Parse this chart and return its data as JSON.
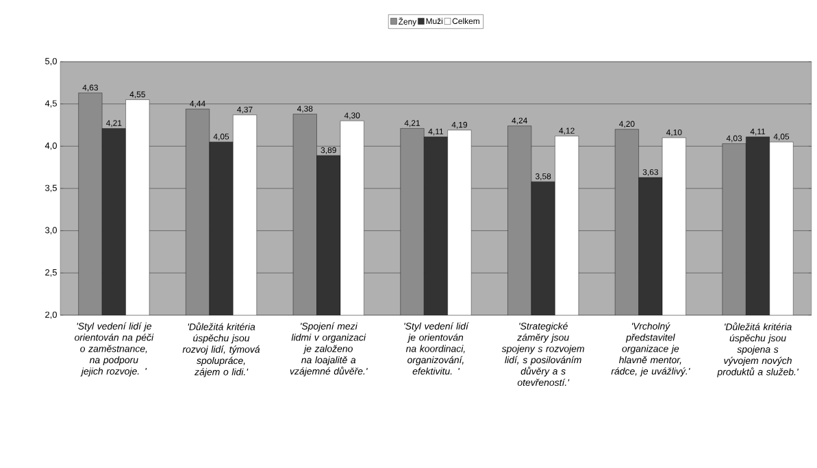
{
  "chart_data": {
    "type": "bar",
    "categories": [
      "'Styl vedení lidí je orientován na péči o zaměstnance, na podporu jejich rozvoje. '",
      "'Důležitá kritéria úspěchu jsou rozvoj lidí, týmová spolupráce, zájem o lidi.'",
      "'Spojení mezi lidmi v organizaci je založeno na loajalitě a vzájemné důvěře.'",
      "'Styl vedení lidí je orientován na koordinaci, organizování, efektivitu. '",
      "'Strategické záměry jsou spojeny s rozvojem lidí, s posilováním důvěry a s otevřeností.'",
      "'Vrcholný představitel organizace je hlavně mentor, rádce, je uvážlivý.'",
      "'Důležitá kritéria úspěchu jsou spojena s vývojem nových produktů a služeb.'"
    ],
    "series": [
      {
        "name": "Ženy",
        "color": "#8c8c8c",
        "values": [
          4.63,
          4.44,
          4.38,
          4.21,
          4.24,
          4.2,
          4.03
        ],
        "value_labels": [
          "4,63",
          "4,44",
          "4,38",
          "4,21",
          "4,24",
          "4,20",
          "4,03"
        ]
      },
      {
        "name": "Muži",
        "color": "#333333",
        "values": [
          4.21,
          4.05,
          3.89,
          4.11,
          3.58,
          3.63,
          4.11
        ],
        "value_labels": [
          "4,21",
          "4,05",
          "3,89",
          "4,11",
          "3,58",
          "3,63",
          "4,11"
        ]
      },
      {
        "name": "Celkem",
        "color": "#ffffff",
        "values": [
          4.55,
          4.37,
          4.3,
          4.19,
          4.12,
          4.1,
          4.05
        ],
        "value_labels": [
          "4,55",
          "4,37",
          "4,30",
          "4,19",
          "4,12",
          "4,10",
          "4,05"
        ]
      }
    ],
    "ylim": [
      2,
      5
    ],
    "yticks": [
      {
        "value": 2,
        "label": "2,0"
      },
      {
        "value": 2.5,
        "label": "2,5"
      },
      {
        "value": 3,
        "label": "3,0"
      },
      {
        "value": 3.5,
        "label": "3,5"
      },
      {
        "value": 4,
        "label": "4,0"
      },
      {
        "value": 4.5,
        "label": "4,5"
      },
      {
        "value": 5,
        "label": "5,0"
      }
    ],
    "grid": "y",
    "legend": "top"
  }
}
